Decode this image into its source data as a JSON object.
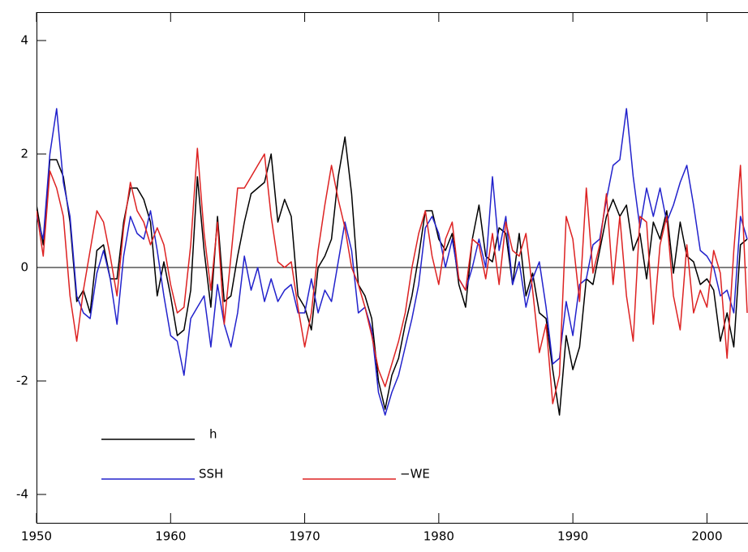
{
  "chart_data": {
    "type": "line",
    "x": [
      1950,
      1950.5,
      1951,
      1951.5,
      1952,
      1952.5,
      1953,
      1953.5,
      1954,
      1954.5,
      1955,
      1955.5,
      1956,
      1956.5,
      1957,
      1957.5,
      1958,
      1958.5,
      1959,
      1959.5,
      1960,
      1960.5,
      1961,
      1961.5,
      1962,
      1962.5,
      1963,
      1963.5,
      1964,
      1964.5,
      1965,
      1965.5,
      1966,
      1966.5,
      1967,
      1967.5,
      1968,
      1968.5,
      1969,
      1969.5,
      1970,
      1970.5,
      1971,
      1971.5,
      1972,
      1972.5,
      1973,
      1973.5,
      1974,
      1974.5,
      1975,
      1975.5,
      1976,
      1976.5,
      1977,
      1977.5,
      1978,
      1978.5,
      1979,
      1979.5,
      1980,
      1980.5,
      1981,
      1981.5,
      1982,
      1982.5,
      1983,
      1983.5,
      1984,
      1984.5,
      1985,
      1985.5,
      1986,
      1986.5,
      1987,
      1987.5,
      1988,
      1988.5,
      1989,
      1989.5,
      1990,
      1990.5,
      1991,
      1991.5,
      1992,
      1992.5,
      1993,
      1993.5,
      1994,
      1994.5,
      1995,
      1995.5,
      1996,
      1996.5,
      1997,
      1997.5,
      1998,
      1998.5,
      1999,
      1999.5,
      2000,
      2000.5,
      2001,
      2001.5,
      2002,
      2002.5,
      2003
    ],
    "series": [
      {
        "name": "h",
        "color": "#000000",
        "values": [
          1.1,
          0.4,
          1.9,
          1.9,
          1.6,
          0.8,
          -0.6,
          -0.4,
          -0.8,
          0.3,
          0.4,
          -0.2,
          -0.2,
          0.8,
          1.4,
          1.4,
          1.2,
          0.8,
          -0.5,
          0.1,
          -0.5,
          -1.2,
          -1.1,
          -0.4,
          1.6,
          0.3,
          -0.7,
          0.9,
          -0.6,
          -0.5,
          0.2,
          0.8,
          1.3,
          1.4,
          1.5,
          2.0,
          0.8,
          1.2,
          0.9,
          -0.5,
          -0.7,
          -1.1,
          0,
          0.2,
          0.5,
          1.6,
          2.3,
          1.3,
          -0.3,
          -0.5,
          -0.9,
          -2.0,
          -2.5,
          -1.9,
          -1.6,
          -1.0,
          -0.5,
          0.2,
          1.0,
          1.0,
          0.5,
          0.3,
          0.6,
          -0.3,
          -0.7,
          0.5,
          1.1,
          0.2,
          0.1,
          0.7,
          0.6,
          -0.3,
          0.6,
          -0.5,
          -0.1,
          -0.8,
          -0.9,
          -1.8,
          -2.6,
          -1.2,
          -1.8,
          -1.4,
          -0.2,
          -0.3,
          0.3,
          0.9,
          1.2,
          0.9,
          1.1,
          0.3,
          0.6,
          -0.2,
          0.8,
          0.5,
          1.0,
          -0.1,
          0.8,
          0.2,
          0.1,
          -0.3,
          -0.2,
          -0.4,
          -1.3,
          -0.8,
          -1.4,
          0.4,
          0.5
        ]
      },
      {
        "name": "SSH",
        "color": "#2222cc",
        "values": [
          0.9,
          0.5,
          2.0,
          2.8,
          1.5,
          0.9,
          -0.5,
          -0.8,
          -0.9,
          -0.1,
          0.3,
          -0.2,
          -1.0,
          0.2,
          0.9,
          0.6,
          0.5,
          1.0,
          0.3,
          -0.5,
          -1.2,
          -1.3,
          -1.9,
          -0.9,
          -0.7,
          -0.5,
          -1.4,
          -0.3,
          -1.0,
          -1.4,
          -0.8,
          0.2,
          -0.4,
          0.0,
          -0.6,
          -0.2,
          -0.6,
          -0.4,
          -0.3,
          -0.8,
          -0.8,
          -0.2,
          -0.8,
          -0.4,
          -0.6,
          0.1,
          0.8,
          0.3,
          -0.8,
          -0.7,
          -1.1,
          -2.2,
          -2.6,
          -2.2,
          -1.9,
          -1.4,
          -0.9,
          -0.3,
          0.7,
          0.9,
          0.6,
          0.0,
          0.5,
          -0.2,
          -0.4,
          0.0,
          0.5,
          0.0,
          1.6,
          0.3,
          0.9,
          -0.3,
          0.1,
          -0.7,
          -0.2,
          0.1,
          -0.7,
          -1.7,
          -1.6,
          -0.6,
          -1.2,
          -0.3,
          -0.2,
          0.4,
          0.5,
          1.2,
          1.8,
          1.9,
          2.8,
          1.6,
          0.7,
          1.4,
          0.9,
          1.4,
          0.8,
          1.1,
          1.5,
          1.8,
          1.1,
          0.3,
          0.2,
          0.0,
          -0.5,
          -0.4,
          -0.8,
          0.9,
          0.5
        ]
      },
      {
        "name": "−WE",
        "color": "#dd2222",
        "values": [
          1.0,
          0.2,
          1.7,
          1.4,
          0.9,
          -0.5,
          -1.3,
          -0.4,
          0.3,
          1.0,
          0.8,
          0.2,
          -0.5,
          0.7,
          1.5,
          1.0,
          0.8,
          0.4,
          0.7,
          0.4,
          -0.3,
          -0.8,
          -0.7,
          0.4,
          2.1,
          0.6,
          -0.4,
          0.8,
          -1.0,
          0.2,
          1.4,
          1.4,
          1.6,
          1.8,
          2.0,
          0.9,
          0.1,
          0.0,
          0.1,
          -0.7,
          -1.4,
          -0.8,
          0.3,
          1.1,
          1.8,
          1.2,
          0.7,
          0.0,
          -0.3,
          -0.7,
          -1.2,
          -1.8,
          -2.1,
          -1.7,
          -1.3,
          -0.8,
          0.0,
          0.6,
          1.0,
          0.2,
          -0.3,
          0.5,
          0.8,
          -0.2,
          -0.4,
          0.5,
          0.4,
          -0.2,
          0.6,
          -0.3,
          0.8,
          0.3,
          0.2,
          0.6,
          -0.4,
          -1.5,
          -1.0,
          -2.4,
          -1.9,
          0.9,
          0.5,
          -0.6,
          1.4,
          -0.1,
          0.4,
          1.3,
          -0.3,
          0.9,
          -0.5,
          -1.3,
          0.9,
          0.8,
          -1.0,
          0.4,
          0.9,
          -0.5,
          -1.1,
          0.4,
          -0.8,
          -0.4,
          -0.7,
          0.3,
          -0.1,
          -1.6,
          0.3,
          1.8,
          -0.8
        ]
      }
    ],
    "xlim": [
      1950,
      2003
    ],
    "ylim": [
      -4.5,
      4.5
    ],
    "xticks": [
      1950,
      1960,
      1970,
      1980,
      1990,
      2000
    ],
    "yticks": [
      -4,
      -2,
      0,
      2,
      4
    ],
    "zero_line": true
  }
}
